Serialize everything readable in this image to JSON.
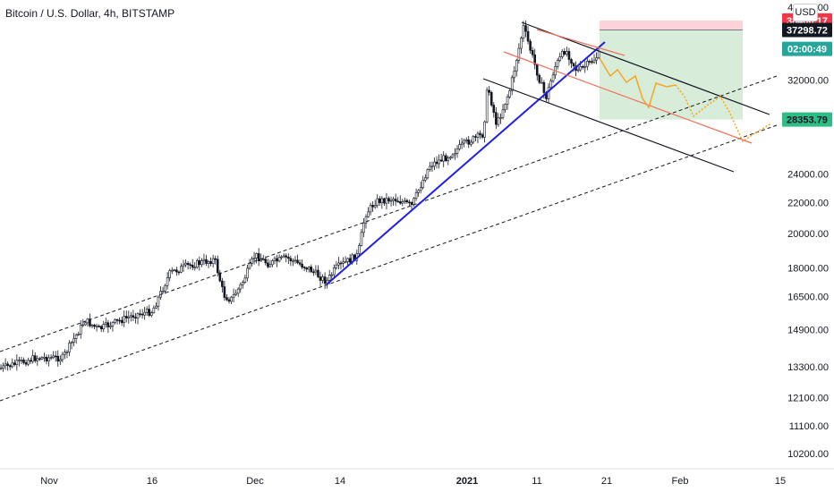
{
  "header": {
    "title": "Bitcoin / U.S. Dollar, 4h, BITSTAMP",
    "currency_button": "USD"
  },
  "chart_data": {
    "type": "candlestick",
    "y_scale": "log",
    "ylim": [
      9900,
      41000
    ],
    "y_ticks": [
      {
        "label": "40000.00",
        "value": 40000
      },
      {
        "label": "32000.00",
        "value": 32000
      },
      {
        "label": "24000.00",
        "value": 24000
      },
      {
        "label": "22000.00",
        "value": 22000
      },
      {
        "label": "20000.00",
        "value": 20000
      },
      {
        "label": "18000.00",
        "value": 18000
      },
      {
        "label": "16500.00",
        "value": 16500
      },
      {
        "label": "14900.00",
        "value": 14900
      },
      {
        "label": "13300.00",
        "value": 13300
      },
      {
        "label": "12100.00",
        "value": 12100
      },
      {
        "label": "11100.00",
        "value": 11100
      },
      {
        "label": "10200.00",
        "value": 10200
      }
    ],
    "x_ticks": [
      {
        "label": "Nov",
        "bold": false
      },
      {
        "label": "16",
        "bold": false
      },
      {
        "label": "Dec",
        "bold": false
      },
      {
        "label": "14",
        "bold": false
      },
      {
        "label": "2021",
        "bold": true
      },
      {
        "label": "11",
        "bold": false
      },
      {
        "label": "21",
        "bold": false
      },
      {
        "label": "Feb",
        "bold": false
      },
      {
        "label": "15",
        "bold": false
      }
    ],
    "price_tags": [
      {
        "label": "38400.17",
        "value": 38400.17,
        "bg": "#f23645",
        "fg": "#ffffff"
      },
      {
        "label": "37298.72",
        "value": 37298.72,
        "bg": "#131722",
        "fg": "#ffffff"
      },
      {
        "label": "02:00:49",
        "value": 35200,
        "bg": "#26a69a",
        "fg": "#ffffff"
      },
      {
        "label": "28353.79",
        "value": 28353.79,
        "bg": "#2ebd85",
        "fg": "#131722"
      }
    ],
    "colors": {
      "up": "#26a69a",
      "down": "#ef5350",
      "candles": "#131722",
      "trendline": "#1e1ee6",
      "channel_mid": "#f2705a",
      "projection": "#f5a623",
      "target_zone": "#4caf50",
      "stop_zone": "#f23645"
    }
  }
}
